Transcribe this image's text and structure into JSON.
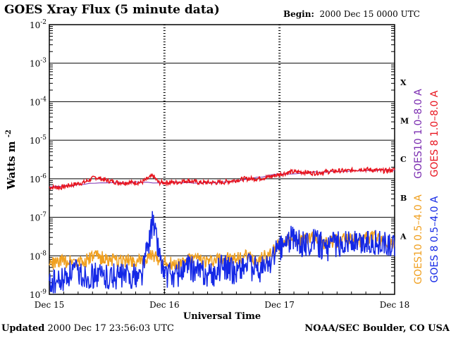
{
  "title": "GOES Xray Flux (5 minute data)",
  "begin": {
    "label": "Begin:",
    "value": "2000 Dec 15 0000 UTC"
  },
  "updated": {
    "label": "Updated",
    "value": "2000 Dec 17 23:56:03 UTC"
  },
  "credit": "NOAA/SEC Boulder, CO USA",
  "chart_data": {
    "type": "line",
    "title": "GOES Xray Flux (5 minute data)",
    "xlabel": "Universal Time",
    "ylabel": "Watts m",
    "ylabel_sup": "-2",
    "yscale": "log",
    "ylim": [
      1e-09,
      0.01
    ],
    "y_ticks": [
      {
        "base": "10",
        "exp": "-2",
        "value": 0.01
      },
      {
        "base": "10",
        "exp": "-3",
        "value": 0.001
      },
      {
        "base": "10",
        "exp": "-4",
        "value": 0.0001
      },
      {
        "base": "10",
        "exp": "-5",
        "value": 1e-05
      },
      {
        "base": "10",
        "exp": "-6",
        "value": 1e-06
      },
      {
        "base": "10",
        "exp": "-7",
        "value": 1e-07
      },
      {
        "base": "10",
        "exp": "-8",
        "value": 1e-08
      },
      {
        "base": "10",
        "exp": "-9",
        "value": 1e-09
      }
    ],
    "x_ticks": [
      {
        "label": "Dec 15",
        "day": 0
      },
      {
        "label": "Dec 16",
        "day": 1
      },
      {
        "label": "Dec 17",
        "day": 2
      },
      {
        "label": "Dec 18",
        "day": 3
      }
    ],
    "xlim_days": [
      0,
      3
    ],
    "flare_classes": [
      {
        "label": "X",
        "value": 0.00032
      },
      {
        "label": "M",
        "value": 3.2e-05
      },
      {
        "label": "C",
        "value": 3.2e-06
      },
      {
        "label": "B",
        "value": 3.2e-07
      },
      {
        "label": "A",
        "value": 3.2e-08
      }
    ],
    "legend": [
      {
        "name": "GOES10 1.0–8.0 A",
        "color": "#7a2bb0"
      },
      {
        "name": "GOES 8 1.0–8.0 A",
        "color": "#e8141e"
      },
      {
        "name": "GOES10 0.5–4.0 A",
        "color": "#f0a020"
      },
      {
        "name": "GOES 8 0.5–4.0 A",
        "color": "#1428e6"
      }
    ],
    "series": [
      {
        "name": "GOES 8 1.0–8.0 A",
        "color": "#e8141e",
        "x": [
          0,
          0.1,
          0.2,
          0.3,
          0.4,
          0.5,
          0.6,
          0.7,
          0.8,
          0.9,
          0.95,
          1.0,
          1.1,
          1.2,
          1.3,
          1.4,
          1.5,
          1.6,
          1.7,
          1.8,
          1.9,
          2.0,
          2.1,
          2.2,
          2.3,
          2.4,
          2.5,
          2.6,
          2.7,
          2.8,
          2.9,
          3.0
        ],
        "values": [
          6e-07,
          6e-07,
          7e-07,
          8e-07,
          1.1e-06,
          9e-07,
          8e-07,
          8e-07,
          8e-07,
          1.2e-06,
          8e-07,
          8e-07,
          8e-07,
          9e-07,
          8e-07,
          8e-07,
          8e-07,
          9e-07,
          1e-06,
          1e-06,
          1.1e-06,
          1.3e-06,
          1.5e-06,
          1.5e-06,
          1.4e-06,
          1.5e-06,
          1.6e-06,
          1.6e-06,
          1.8e-06,
          1.7e-06,
          1.6e-06,
          1.7e-06
        ]
      },
      {
        "name": "GOES10 1.0–8.0 A",
        "color": "#7a2bb0",
        "x": [
          0,
          0.5,
          1.0,
          1.5,
          2.0,
          2.5,
          3.0
        ],
        "values": [
          6e-07,
          8e-07,
          8e-07,
          8e-07,
          1.3e-06,
          1.6e-06,
          1.7e-06
        ]
      },
      {
        "name": "GOES10 0.5–4.0 A",
        "color": "#f0a020",
        "x": [
          0,
          0.1,
          0.2,
          0.3,
          0.4,
          0.5,
          0.6,
          0.7,
          0.8,
          0.9,
          1.0,
          1.1,
          1.2,
          1.3,
          1.4,
          1.5,
          1.6,
          1.7,
          1.8,
          1.9,
          2.0,
          2.1,
          2.2,
          2.3,
          2.4,
          2.5,
          2.6,
          2.7,
          2.8,
          2.9,
          3.0
        ],
        "values": [
          6e-09,
          7e-09,
          8e-09,
          7e-09,
          1e-08,
          8e-09,
          7e-09,
          8e-09,
          7e-09,
          1e-08,
          7e-09,
          6e-09,
          8e-09,
          8e-09,
          7e-09,
          9e-09,
          8e-09,
          1e-08,
          8e-09,
          1e-08,
          2e-08,
          3e-08,
          2.5e-08,
          3e-08,
          2e-08,
          2.5e-08,
          3e-08,
          2.5e-08,
          3e-08,
          2.5e-08,
          2e-08
        ]
      },
      {
        "name": "GOES 8 0.5–4.0 A",
        "color": "#1428e6",
        "x": [
          0,
          0.1,
          0.2,
          0.3,
          0.4,
          0.5,
          0.6,
          0.7,
          0.8,
          0.9,
          1.0,
          1.1,
          1.2,
          1.3,
          1.4,
          1.5,
          1.6,
          1.7,
          1.8,
          1.9,
          2.0,
          2.1,
          2.2,
          2.3,
          2.4,
          2.5,
          2.6,
          2.7,
          2.8,
          2.9,
          3.0
        ],
        "values": [
          2e-09,
          2e-09,
          4e-09,
          3e-09,
          3e-09,
          3e-09,
          3e-09,
          3e-09,
          3e-09,
          8e-08,
          3e-09,
          3e-09,
          5e-09,
          4e-09,
          3e-09,
          5e-09,
          4e-09,
          6e-09,
          4e-09,
          6e-09,
          1.5e-08,
          3e-08,
          2e-08,
          2.5e-08,
          1.5e-08,
          2e-08,
          2.5e-08,
          2e-08,
          2.5e-08,
          2e-08,
          1.5e-08
        ]
      }
    ],
    "grid": true,
    "legend_placement": "right"
  }
}
